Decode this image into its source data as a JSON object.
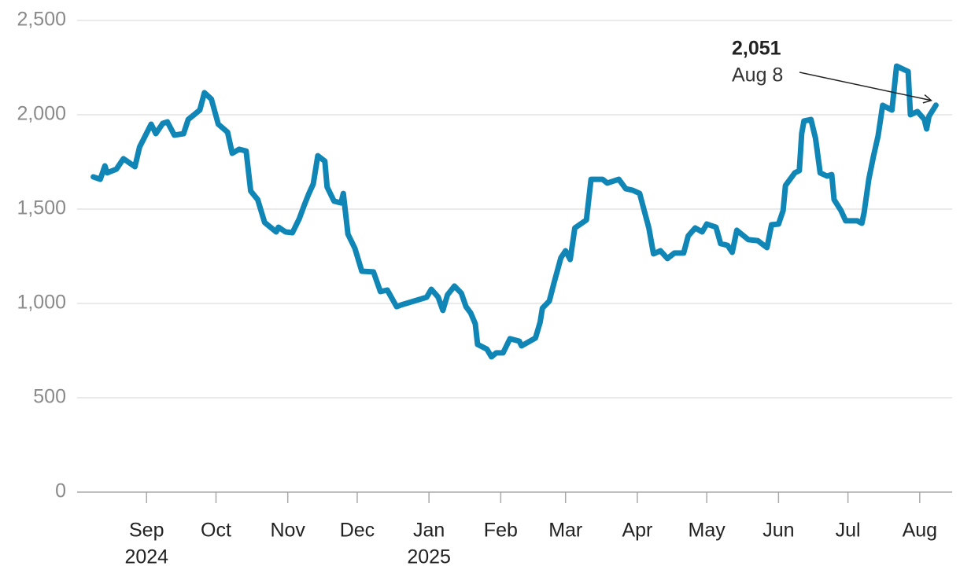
{
  "chart_data": {
    "type": "line",
    "x": [
      "2024-08-09",
      "2024-08-12",
      "2024-08-14",
      "2024-08-15",
      "2024-08-19",
      "2024-08-22",
      "2024-08-27",
      "2024-08-29",
      "2024-09-03",
      "2024-09-05",
      "2024-09-08",
      "2024-09-10",
      "2024-09-13",
      "2024-09-17",
      "2024-09-19",
      "2024-09-24",
      "2024-09-26",
      "2024-09-29",
      "2024-10-02",
      "2024-10-06",
      "2024-10-08",
      "2024-10-11",
      "2024-10-14",
      "2024-10-16",
      "2024-10-19",
      "2024-10-22",
      "2024-10-27",
      "2024-10-28",
      "2024-10-31",
      "2024-11-03",
      "2024-11-06",
      "2024-11-08",
      "2024-11-10",
      "2024-11-12",
      "2024-11-14",
      "2024-11-17",
      "2024-11-18",
      "2024-11-21",
      "2024-11-24",
      "2024-11-25",
      "2024-11-27",
      "2024-11-30",
      "2024-12-03",
      "2024-12-08",
      "2024-12-11",
      "2024-12-14",
      "2024-12-18",
      "2024-12-20",
      "2024-12-31",
      "2025-01-02",
      "2025-01-05",
      "2025-01-07",
      "2025-01-09",
      "2025-01-12",
      "2025-01-15",
      "2025-01-17",
      "2025-01-19",
      "2025-01-21",
      "2025-01-22",
      "2025-01-26",
      "2025-01-28",
      "2025-01-30",
      "2025-02-02",
      "2025-02-05",
      "2025-02-09",
      "2025-02-10",
      "2025-02-16",
      "2025-02-18",
      "2025-02-19",
      "2025-02-22",
      "2025-02-24",
      "2025-02-27",
      "2025-03-01",
      "2025-03-03",
      "2025-03-05",
      "2025-03-10",
      "2025-03-12",
      "2025-03-17",
      "2025-03-19",
      "2025-03-24",
      "2025-03-27",
      "2025-03-30",
      "2025-04-02",
      "2025-04-04",
      "2025-04-06",
      "2025-04-08",
      "2025-04-11",
      "2025-04-14",
      "2025-04-17",
      "2025-04-21",
      "2025-04-23",
      "2025-04-26",
      "2025-04-29",
      "2025-05-01",
      "2025-05-05",
      "2025-05-07",
      "2025-05-10",
      "2025-05-12",
      "2025-05-14",
      "2025-05-19",
      "2025-05-23",
      "2025-05-27",
      "2025-05-29",
      "2025-06-01",
      "2025-06-03",
      "2025-06-04",
      "2025-06-08",
      "2025-06-10",
      "2025-06-11",
      "2025-06-12",
      "2025-06-15",
      "2025-06-17",
      "2025-06-19",
      "2025-06-22",
      "2025-06-24",
      "2025-06-25",
      "2025-06-28",
      "2025-06-30",
      "2025-07-05",
      "2025-07-07",
      "2025-07-08",
      "2025-07-10",
      "2025-07-12",
      "2025-07-14",
      "2025-07-16",
      "2025-07-20",
      "2025-07-22",
      "2025-07-27",
      "2025-07-28",
      "2025-07-31",
      "2025-08-03",
      "2025-08-04",
      "2025-08-05",
      "2025-08-08"
    ],
    "series": [
      {
        "color": "#0f86b6",
        "values": [
          1671,
          1658,
          1729,
          1692,
          1712,
          1767,
          1725,
          1829,
          1950,
          1900,
          1954,
          1962,
          1892,
          1900,
          1975,
          2025,
          2117,
          2083,
          1950,
          1908,
          1796,
          1817,
          1808,
          1596,
          1550,
          1429,
          1379,
          1404,
          1379,
          1375,
          1450,
          1517,
          1579,
          1633,
          1783,
          1754,
          1617,
          1542,
          1533,
          1583,
          1367,
          1292,
          1171,
          1167,
          1063,
          1071,
          983,
          992,
          1033,
          1075,
          1033,
          963,
          1046,
          1092,
          1054,
          983,
          950,
          892,
          783,
          758,
          717,
          738,
          738,
          813,
          800,
          775,
          817,
          900,
          975,
          1013,
          1108,
          1242,
          1279,
          1233,
          1400,
          1442,
          1658,
          1658,
          1638,
          1658,
          1608,
          1600,
          1583,
          1492,
          1400,
          1263,
          1279,
          1238,
          1267,
          1267,
          1358,
          1400,
          1379,
          1421,
          1404,
          1317,
          1308,
          1271,
          1388,
          1338,
          1333,
          1296,
          1417,
          1421,
          1492,
          1625,
          1692,
          1704,
          1900,
          1967,
          1975,
          1875,
          1692,
          1675,
          1683,
          1550,
          1492,
          1438,
          1438,
          1425,
          1483,
          1658,
          1779,
          1888,
          2050,
          2025,
          2258,
          2229,
          2000,
          2017,
          1975,
          1925,
          1992,
          2051
        ]
      }
    ],
    "xlim": [
      "2024-08-02",
      "2025-08-15"
    ],
    "xticks": [
      {
        "value": "2024-09-01",
        "label": "Sep",
        "year": "2024"
      },
      {
        "value": "2024-10-01",
        "label": "Oct"
      },
      {
        "value": "2024-11-01",
        "label": "Nov"
      },
      {
        "value": "2024-12-01",
        "label": "Dec"
      },
      {
        "value": "2025-01-01",
        "label": "Jan",
        "year": "2025"
      },
      {
        "value": "2025-02-01",
        "label": "Feb"
      },
      {
        "value": "2025-03-01",
        "label": "Mar"
      },
      {
        "value": "2025-04-01",
        "label": "Apr"
      },
      {
        "value": "2025-05-01",
        "label": "May"
      },
      {
        "value": "2025-06-01",
        "label": "Jun"
      },
      {
        "value": "2025-07-01",
        "label": "Jul"
      },
      {
        "value": "2025-08-01",
        "label": "Aug"
      }
    ],
    "ylim": [
      0,
      2500
    ],
    "yticks": [
      0,
      {
        "value": 500,
        "label": "500"
      },
      {
        "value": 1000,
        "label": "1,000"
      },
      {
        "value": 1500,
        "label": "1,500"
      },
      {
        "value": 2000,
        "label": "2,000"
      },
      {
        "value": 2500,
        "label": "2,500"
      }
    ],
    "grid": true,
    "annotation": {
      "value": 2051,
      "label": "2,051",
      "date": "Aug 8",
      "x": "2025-08-08"
    }
  }
}
